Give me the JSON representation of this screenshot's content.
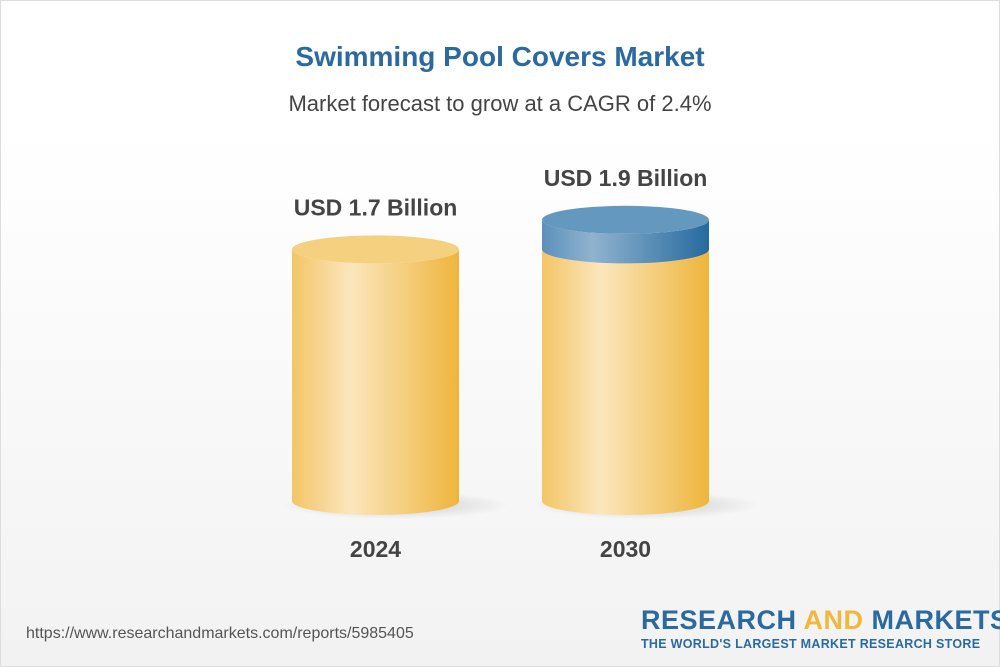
{
  "title": "Swimming Pool Covers Market",
  "subtitle": "Market forecast to grow at a CAGR of 2.4%",
  "chart_data": {
    "type": "bar",
    "style": "3d-cylinder",
    "categories": [
      "2024",
      "2030"
    ],
    "values": [
      1.7,
      1.9
    ],
    "unit": "USD Billion",
    "data_labels": [
      "USD 1.7 Billion",
      "USD 1.9 Billion"
    ],
    "colors": {
      "base": "#f1c05a",
      "growth": "#3f7fb0"
    }
  },
  "footer": {
    "url": "https://www.researchandmarkets.com/reports/5985405",
    "logo_part1": "RESEARCH ",
    "logo_part2": "AND",
    "logo_part3": " MARKETS",
    "logo_tagline": "THE WORLD'S LARGEST MARKET RESEARCH STORE"
  }
}
